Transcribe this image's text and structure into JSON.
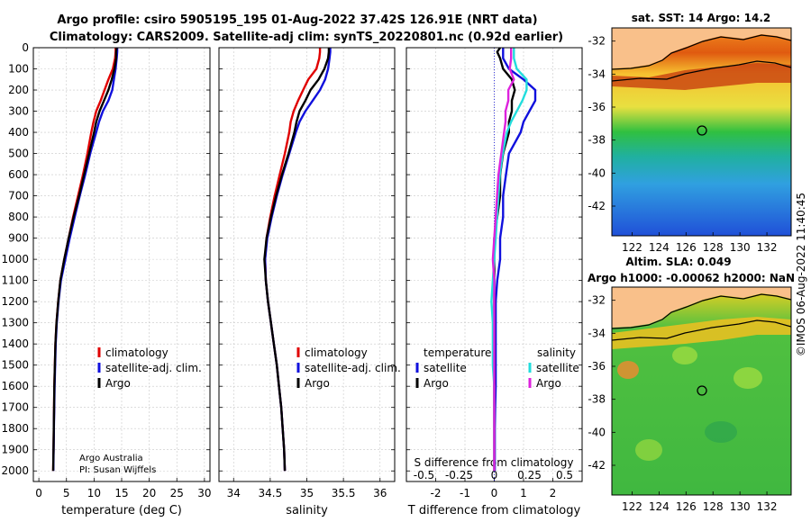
{
  "header": {
    "title_line1": "Argo profile: csiro 5905195_195 01-Aug-2022 37.42S 126.91E (NRT data)",
    "title_line2": "Climatology: CARS2009. Satellite-adj clim: synTS_20220801.nc (0.92d earlier)"
  },
  "credits": {
    "line1": "Argo Australia",
    "line2": "PI: Susan Wijffels"
  },
  "timestamp": "©IMOS 06-Aug-2022 11:40:45",
  "colors": {
    "climatology": "#e00000",
    "satellite": "#1010dd",
    "argo": "#000000",
    "sat_salinity": "#22dddd",
    "argo_salinity": "#dd22dd",
    "land": "#f9c08a",
    "grid": "#c8c8c8"
  },
  "chart_data": [
    {
      "type": "line",
      "name": "temperature",
      "xlabel": "temperature (deg C)",
      "ylabel": "",
      "xlim": [
        -1,
        31
      ],
      "ylim": [
        2050,
        0
      ],
      "xticks": [
        0,
        5,
        10,
        15,
        20,
        25,
        30
      ],
      "yticks": [
        0,
        100,
        200,
        300,
        400,
        500,
        600,
        700,
        800,
        900,
        1000,
        1100,
        1200,
        1300,
        1400,
        1500,
        1600,
        1700,
        1800,
        1900,
        2000
      ],
      "grid": true,
      "legend": {
        "position": "center-right",
        "entries": [
          "climatology",
          "satellite-adj. clim.",
          "Argo"
        ]
      },
      "depth": [
        0,
        20,
        50,
        100,
        150,
        200,
        250,
        300,
        350,
        400,
        500,
        600,
        700,
        800,
        900,
        1000,
        1100,
        1200,
        1300,
        1400,
        1500,
        1600,
        1700,
        1800,
        1900,
        2000
      ],
      "series": [
        {
          "name": "climatology",
          "color_key": "climatology",
          "values": [
            13.9,
            13.9,
            13.8,
            13.4,
            12.6,
            11.9,
            11.2,
            10.4,
            9.9,
            9.5,
            8.8,
            8.0,
            7.1,
            6.2,
            5.4,
            4.6,
            3.9,
            3.5,
            3.2,
            3.0,
            2.9,
            2.8,
            2.75,
            2.7,
            2.65,
            2.6
          ]
        },
        {
          "name": "satellite-adj. clim.",
          "color_key": "satellite",
          "values": [
            14.2,
            14.2,
            14.1,
            13.9,
            13.6,
            13.3,
            12.6,
            11.6,
            10.9,
            10.4,
            9.3,
            8.4,
            7.4,
            6.5,
            5.6,
            4.8,
            4.0,
            3.55,
            3.25,
            3.05,
            2.95,
            2.85,
            2.78,
            2.72,
            2.67,
            2.62
          ]
        },
        {
          "name": "Argo",
          "color_key": "argo",
          "values": [
            14.1,
            14.0,
            14.0,
            13.7,
            13.2,
            12.6,
            11.8,
            11.0,
            10.4,
            10.0,
            9.1,
            8.2,
            7.3,
            6.3,
            5.4,
            4.6,
            3.9,
            3.5,
            3.2,
            3.0,
            2.9,
            2.8,
            2.75,
            2.7,
            2.65,
            2.6
          ]
        }
      ]
    },
    {
      "type": "line",
      "name": "salinity",
      "xlabel": "salinity",
      "xlim": [
        33.8,
        36.2
      ],
      "ylim": [
        2050,
        0
      ],
      "xticks": [
        34,
        34.5,
        35,
        35.5,
        36
      ],
      "grid": true,
      "legend": {
        "position": "center-right",
        "entries": [
          "climatology",
          "satellite-adj. clim.",
          "Argo"
        ]
      },
      "depth": [
        0,
        20,
        50,
        100,
        150,
        200,
        250,
        300,
        350,
        400,
        500,
        600,
        700,
        800,
        900,
        1000,
        1100,
        1200,
        1300,
        1400,
        1500,
        1600,
        1700,
        1800,
        1900,
        2000
      ],
      "series": [
        {
          "name": "climatology",
          "color_key": "climatology",
          "values": [
            35.18,
            35.18,
            35.17,
            35.13,
            35.02,
            34.95,
            34.88,
            34.82,
            34.78,
            34.76,
            34.7,
            34.63,
            34.56,
            34.5,
            34.45,
            34.43,
            34.44,
            34.47,
            34.51,
            34.55,
            34.59,
            34.62,
            34.65,
            34.67,
            34.69,
            34.7
          ]
        },
        {
          "name": "satellite-adj. clim.",
          "color_key": "satellite",
          "values": [
            35.32,
            35.32,
            35.31,
            35.29,
            35.25,
            35.18,
            35.08,
            34.98,
            34.9,
            34.85,
            34.76,
            34.67,
            34.59,
            34.52,
            34.46,
            34.43,
            34.44,
            34.47,
            34.51,
            34.55,
            34.59,
            34.62,
            34.65,
            34.67,
            34.69,
            34.7
          ]
        },
        {
          "name": "Argo",
          "color_key": "argo",
          "values": [
            35.3,
            35.3,
            35.29,
            35.24,
            35.16,
            35.05,
            34.98,
            34.9,
            34.86,
            34.83,
            34.75,
            34.66,
            34.58,
            34.51,
            34.45,
            34.42,
            34.44,
            34.47,
            34.51,
            34.55,
            34.59,
            34.62,
            34.65,
            34.67,
            34.69,
            34.7
          ]
        }
      ]
    },
    {
      "type": "line",
      "name": "difference",
      "xlabel": "T difference from climatology",
      "top_xlabel": "S difference from climatology",
      "xlim": [
        -3,
        3
      ],
      "ylim": [
        2050,
        0
      ],
      "xticks": [
        -2,
        -1,
        0,
        1,
        2
      ],
      "top_xticks": [
        -0.5,
        -0.25,
        0,
        0.25,
        0.5
      ],
      "grid": true,
      "legend_temperature": {
        "title": "temperature",
        "entries": [
          "satellite",
          "Argo"
        ]
      },
      "legend_salinity": {
        "title": "salinity",
        "entries": [
          "satellite",
          "Argo"
        ]
      },
      "depth": [
        0,
        20,
        50,
        100,
        150,
        200,
        250,
        300,
        350,
        400,
        500,
        600,
        700,
        800,
        900,
        1000,
        1100,
        1200,
        1300,
        1400,
        1500,
        1600,
        1700,
        1800,
        1900,
        2000
      ],
      "series": [
        {
          "name": "T satellite",
          "color_key": "satellite",
          "values": [
            0.3,
            0.3,
            0.3,
            0.5,
            1.0,
            1.4,
            1.4,
            1.2,
            1.0,
            0.9,
            0.5,
            0.4,
            0.3,
            0.3,
            0.2,
            0.2,
            0.1,
            0.05,
            0.05,
            0.05,
            0.05,
            0.05,
            0.03,
            0.02,
            0.02,
            0.02
          ]
        },
        {
          "name": "T Argo",
          "color_key": "argo",
          "values": [
            0.2,
            0.1,
            0.2,
            0.3,
            0.6,
            0.7,
            0.6,
            0.6,
            0.5,
            0.5,
            0.3,
            0.2,
            0.2,
            0.1,
            0.0,
            0.0,
            0.0,
            0.0,
            0.0,
            0.0,
            0.0,
            0.0,
            0.0,
            0.0,
            0.0,
            0.0
          ]
        },
        {
          "name": "S satellite",
          "color_key": "sat_salinity",
          "values": [
            0.14,
            0.14,
            0.14,
            0.16,
            0.23,
            0.23,
            0.2,
            0.16,
            0.12,
            0.09,
            0.06,
            0.04,
            0.03,
            0.02,
            0.01,
            0.0,
            -0.01,
            -0.02,
            -0.01,
            -0.01,
            -0.01,
            0.0,
            0.0,
            0.0,
            0.0,
            0.0
          ]
        },
        {
          "name": "S Argo",
          "color_key": "argo_salinity",
          "values": [
            0.12,
            0.12,
            0.12,
            0.11,
            0.14,
            0.1,
            0.1,
            0.08,
            0.08,
            0.07,
            0.05,
            0.03,
            0.02,
            0.01,
            0.0,
            -0.01,
            0.0,
            0.0,
            0.0,
            0.0,
            0.0,
            0.0,
            0.0,
            0.0,
            0.0,
            0.0
          ]
        }
      ]
    },
    {
      "type": "heatmap",
      "name": "sst_map",
      "title": "sat. SST: 14 Argo: 14.2",
      "xticks": [
        122,
        124,
        126,
        128,
        130,
        132
      ],
      "yticks": [
        -32,
        -34,
        -36,
        -38,
        -40,
        -42
      ],
      "xlim": [
        120.5,
        133.8
      ],
      "ylim": [
        -43.8,
        -31.2
      ],
      "argo_position": [
        126.91,
        -37.42
      ]
    },
    {
      "type": "heatmap",
      "name": "sla_map",
      "title_line1": "Altim. SLA: 0.049",
      "title_line2": "Argo h1000: -0.00062 h2000: NaN",
      "xticks": [
        122,
        124,
        126,
        128,
        130,
        132
      ],
      "yticks": [
        -32,
        -34,
        -36,
        -38,
        -40,
        -42
      ],
      "xlim": [
        120.5,
        133.8
      ],
      "ylim": [
        -43.8,
        -31.2
      ],
      "argo_position": [
        126.91,
        -37.42
      ]
    }
  ]
}
